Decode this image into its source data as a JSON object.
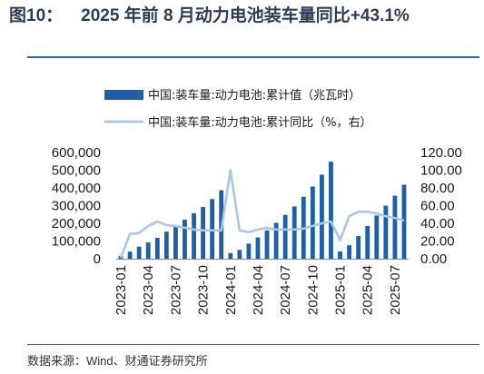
{
  "header": {
    "figure_label": "图10：",
    "title": "2025 年前 8 月动力电池装车量同比+43.1%"
  },
  "footer": {
    "source": "数据来源：Wind、财通证券研究所"
  },
  "colors": {
    "bar": "#1f5fa8",
    "line": "#a8c8ea",
    "rule": "#2b69ad"
  },
  "chart_data": {
    "type": "bar",
    "legend_position": "top",
    "grid": false,
    "legend": [
      "中国:装车量:动力电池:累计值（兆瓦时）",
      "中国:装车量:动力电池:累计同比（%，右）"
    ],
    "x": [
      "2023-01",
      "2023-02",
      "2023-03",
      "2023-04",
      "2023-05",
      "2023-06",
      "2023-07",
      "2023-08",
      "2023-09",
      "2023-10",
      "2023-11",
      "2023-12",
      "2024-01",
      "2024-02",
      "2024-03",
      "2024-04",
      "2024-05",
      "2024-06",
      "2024-07",
      "2024-08",
      "2024-09",
      "2024-10",
      "2024-11",
      "2024-12",
      "2025-01",
      "2025-02",
      "2025-03",
      "2025-04",
      "2025-05",
      "2025-06",
      "2025-07",
      "2025-08"
    ],
    "x_tick_labels": [
      "2023-01",
      "2023-04",
      "2023-07",
      "2023-10",
      "2024-01",
      "2024-04",
      "2024-07",
      "2024-10",
      "2025-01",
      "2025-04",
      "2025-07"
    ],
    "series": [
      {
        "name": "中国:装车量:动力电池:累计值（兆瓦时）",
        "type": "bar",
        "axis": "left",
        "values": [
          16000,
          40000,
          68000,
          92000,
          118000,
          153000,
          185000,
          220000,
          257000,
          293000,
          337000,
          387000,
          32000,
          50000,
          85000,
          120000,
          160000,
          203000,
          248000,
          295000,
          350000,
          408000,
          475000,
          548000,
          41000,
          76000,
          128000,
          185000,
          244000,
          300000,
          356000,
          418000
        ]
      },
      {
        "name": "中国:装车量:动力电池:累计同比（%，右）",
        "type": "line",
        "axis": "right",
        "values": [
          1,
          28,
          29,
          37,
          42,
          38,
          37,
          35,
          33,
          32,
          32,
          32,
          100,
          32,
          30,
          33,
          35,
          33,
          33,
          33,
          34,
          37,
          40,
          42,
          21,
          48,
          53,
          53,
          51,
          48,
          46,
          43.1
        ]
      }
    ],
    "y_left": {
      "ylim": [
        0,
        600000
      ],
      "ticks": [
        "0",
        "100,000",
        "200,000",
        "300,000",
        "400,000",
        "500,000",
        "600,000"
      ]
    },
    "y_right": {
      "ylim": [
        0,
        120
      ],
      "ticks": [
        "0.00",
        "20.00",
        "40.00",
        "60.00",
        "80.00",
        "100.00",
        "120.00"
      ]
    }
  }
}
